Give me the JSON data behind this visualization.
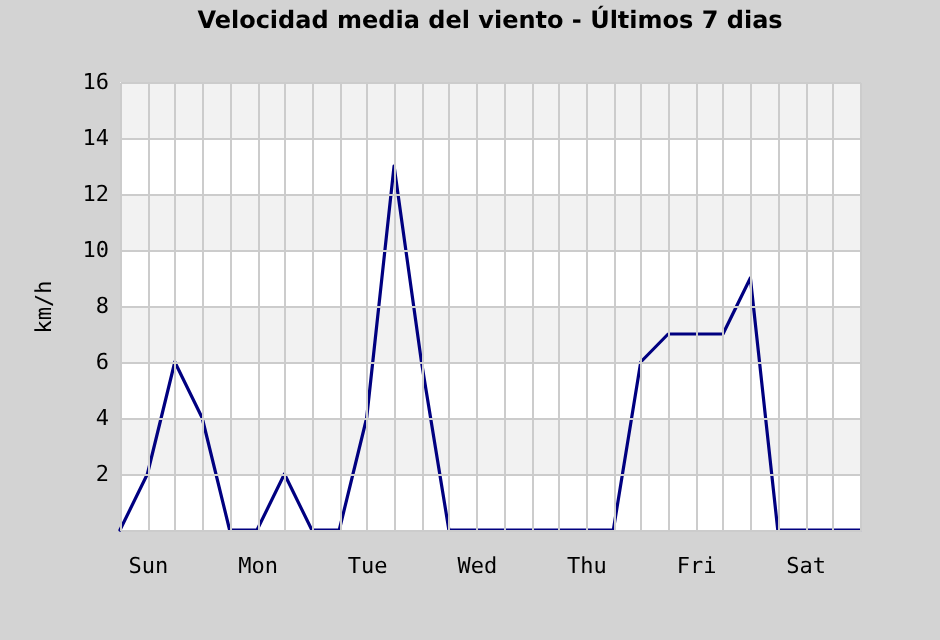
{
  "chart_data": {
    "type": "line",
    "title": "Velocidad media del viento - Últimos 7 dias",
    "ylabel": "km/h",
    "categories": [
      null,
      "Sun",
      null,
      null,
      null,
      "Mon",
      null,
      null,
      null,
      "Tue",
      null,
      null,
      null,
      "Wed",
      null,
      null,
      null,
      "Thu",
      null,
      null,
      null,
      "Fri",
      null,
      null,
      null,
      "Sat",
      null,
      null
    ],
    "series": [
      {
        "color": "#000080",
        "values": [
          0,
          2,
          6,
          4,
          0,
          0,
          2,
          0,
          0,
          4,
          13,
          6,
          0,
          0,
          0,
          0,
          0,
          0,
          0,
          6,
          7,
          7,
          7,
          9,
          0,
          0,
          0,
          0
        ]
      }
    ],
    "ylim": [
      0,
      16
    ],
    "yticks": [
      {
        "value": 0,
        "label": null
      },
      2,
      4,
      6,
      8,
      10,
      12,
      14,
      16
    ],
    "bands": [
      {
        "axis": "y",
        "from": 2,
        "to": 4,
        "color": "#f2f2f2"
      },
      {
        "axis": "y",
        "from": 6,
        "to": 8,
        "color": "#f2f2f2"
      },
      {
        "axis": "y",
        "from": 10,
        "to": 12,
        "color": "#f2f2f2"
      },
      {
        "axis": "y",
        "from": 14,
        "to": 16,
        "color": "#f2f2f2"
      }
    ],
    "grid": true,
    "marker": "none",
    "line_style": "solid"
  }
}
